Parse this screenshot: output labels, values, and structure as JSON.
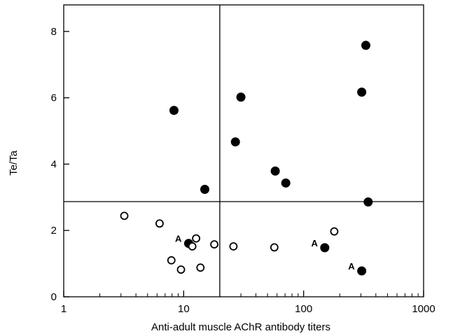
{
  "chart_data": {
    "type": "scatter",
    "xlabel": "Anti-adult muscle AChR antibody titers",
    "ylabel": "Te/Ta",
    "x_scale": "log",
    "xlim": [
      1,
      1000
    ],
    "ylim": [
      0,
      8.8
    ],
    "x_ticks": [
      {
        "value": 1,
        "label": "1"
      },
      {
        "value": 10,
        "label": "10"
      },
      {
        "value": 100,
        "label": "100"
      },
      {
        "value": 1000,
        "label": "1000"
      }
    ],
    "y_ticks": [
      {
        "value": 0,
        "label": "0"
      },
      {
        "value": 2,
        "label": "2"
      },
      {
        "value": 4,
        "label": "4"
      },
      {
        "value": 6,
        "label": "6"
      },
      {
        "value": 8,
        "label": "8"
      }
    ],
    "reference_lines": {
      "x": 20,
      "y": 2.87
    },
    "grid": false,
    "legend": "none",
    "colors": {
      "axis": "#000000",
      "filled_marker": "#000000",
      "open_marker_fill": "#ffffff"
    },
    "series": [
      {
        "marker": "filled-circle",
        "points": [
          {
            "x": 8.3,
            "y": 5.62
          },
          {
            "x": 15,
            "y": 3.24
          },
          {
            "x": 27,
            "y": 4.67
          },
          {
            "x": 30,
            "y": 6.02
          },
          {
            "x": 58,
            "y": 3.79
          },
          {
            "x": 71,
            "y": 3.43
          },
          {
            "x": 305,
            "y": 6.17
          },
          {
            "x": 330,
            "y": 7.58
          },
          {
            "x": 345,
            "y": 2.86
          },
          {
            "x": 11,
            "y": 1.61,
            "label": "A"
          },
          {
            "x": 150,
            "y": 1.48,
            "label": "A"
          },
          {
            "x": 305,
            "y": 0.78,
            "label": "A"
          }
        ]
      },
      {
        "marker": "open-circle",
        "points": [
          {
            "x": 3.2,
            "y": 2.44
          },
          {
            "x": 6.3,
            "y": 2.21
          },
          {
            "x": 7.9,
            "y": 1.1
          },
          {
            "x": 9.5,
            "y": 0.82
          },
          {
            "x": 11.8,
            "y": 1.52
          },
          {
            "x": 12.7,
            "y": 1.76
          },
          {
            "x": 13.8,
            "y": 0.88
          },
          {
            "x": 18,
            "y": 1.58
          },
          {
            "x": 26,
            "y": 1.52
          },
          {
            "x": 57,
            "y": 1.49
          },
          {
            "x": 180,
            "y": 1.97
          }
        ]
      }
    ]
  }
}
